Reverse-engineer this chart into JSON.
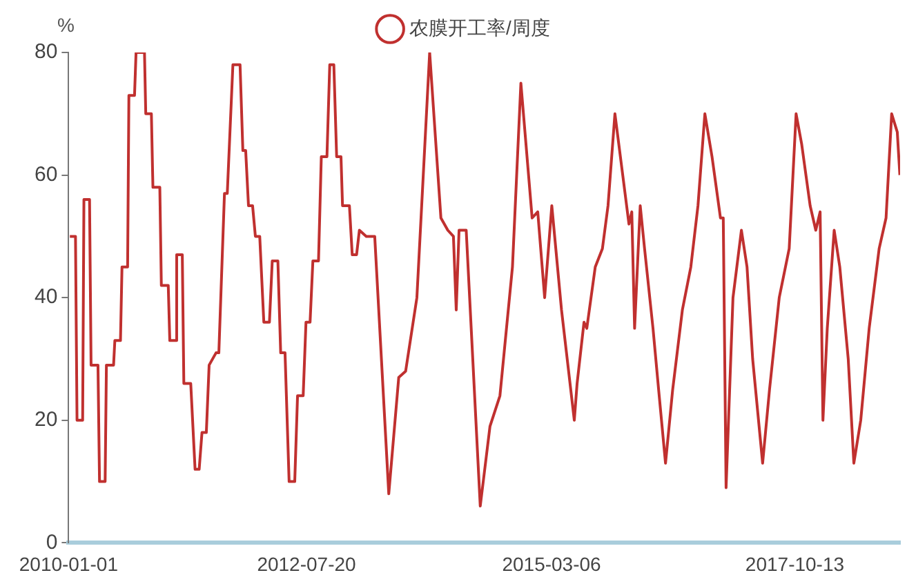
{
  "chart_data": {
    "type": "line",
    "ylabel": "%",
    "legend": "top",
    "marker": "none",
    "grid": false,
    "xlim": [
      "2010-01-01",
      "2018-11-29"
    ],
    "xticks": [
      "2010-01-01",
      "2012-07-20",
      "2015-03-06",
      "2017-10-13"
    ],
    "ylim": [
      0,
      80
    ],
    "yticks": [
      0,
      20,
      40,
      60,
      80
    ],
    "x": [
      "2010-01-06",
      "2010-01-28",
      "2010-02-03",
      "2010-02-25",
      "2010-03-02",
      "2010-03-24",
      "2010-03-30",
      "2010-04-26",
      "2010-05-02",
      "2010-05-24",
      "2010-05-29",
      "2010-06-26",
      "2010-07-01",
      "2010-07-23",
      "2010-07-29",
      "2010-08-20",
      "2010-08-25",
      "2010-09-16",
      "2010-09-22",
      "2010-10-25",
      "2010-10-30",
      "2010-11-21",
      "2010-11-27",
      "2010-12-24",
      "2010-12-30",
      "2011-01-26",
      "2011-02-01",
      "2011-02-23",
      "2011-02-28",
      "2011-03-22",
      "2011-03-28",
      "2011-04-24",
      "2011-05-11",
      "2011-05-27",
      "2011-06-07",
      "2011-06-24",
      "2011-07-05",
      "2011-08-01",
      "2011-08-12",
      "2011-09-03",
      "2011-09-14",
      "2011-10-06",
      "2011-11-03",
      "2011-11-14",
      "2011-11-25",
      "2011-12-06",
      "2011-12-22",
      "2012-01-02",
      "2012-01-19",
      "2012-02-04",
      "2012-02-26",
      "2012-03-08",
      "2012-03-30",
      "2012-04-10",
      "2012-04-27",
      "2012-05-13",
      "2012-06-04",
      "2012-06-15",
      "2012-07-07",
      "2012-07-18",
      "2012-08-03",
      "2012-08-14",
      "2012-09-05",
      "2012-09-16",
      "2012-10-08",
      "2012-10-19",
      "2012-11-04",
      "2012-11-15",
      "2012-12-02",
      "2012-12-08",
      "2013-01-04",
      "2013-01-15",
      "2013-02-01",
      "2013-02-12",
      "2013-03-11",
      "2013-04-13",
      "2013-06-07",
      "2013-07-16",
      "2013-08-12",
      "2013-09-25",
      "2013-11-14",
      "2013-12-28",
      "2014-01-24",
      "2014-02-15",
      "2014-02-26",
      "2014-03-09",
      "2014-04-06",
      "2014-05-31",
      "2014-07-08",
      "2014-08-16",
      "2014-10-04",
      "2014-11-06",
      "2014-12-20",
      "2015-01-11",
      "2015-02-07",
      "2015-03-07",
      "2015-04-14",
      "2015-06-03",
      "2015-06-14",
      "2015-07-11",
      "2015-07-22",
      "2015-08-24",
      "2015-09-21",
      "2015-10-13",
      "2015-11-09",
      "2016-01-03",
      "2016-01-14",
      "2016-01-25",
      "2016-02-16",
      "2016-03-04",
      "2016-04-06",
      "2016-04-28",
      "2016-05-25",
      "2016-06-22",
      "2016-07-30",
      "2016-09-01",
      "2016-09-29",
      "2016-10-26",
      "2016-11-23",
      "2016-12-26",
      "2017-01-06",
      "2017-01-17",
      "2017-02-13",
      "2017-03-18",
      "2017-04-09",
      "2017-05-01",
      "2017-06-09",
      "2017-07-06",
      "2017-08-13",
      "2017-09-21",
      "2017-10-18",
      "2017-11-09",
      "2017-12-12",
      "2018-01-03",
      "2018-01-20",
      "2018-01-31",
      "2018-02-17",
      "2018-03-16",
      "2018-04-07",
      "2018-05-10",
      "2018-06-01",
      "2018-06-28",
      "2018-07-31",
      "2018-09-08",
      "2018-10-05",
      "2018-10-27",
      "2018-11-18",
      "2018-11-28"
    ],
    "series": [
      {
        "name": "农膜开工率/周度",
        "color": "#c0302f",
        "values": [
          50,
          50,
          20,
          20,
          56,
          56,
          29,
          29,
          10,
          10,
          29,
          29,
          33,
          33,
          45,
          45,
          73,
          73,
          80,
          80,
          70,
          70,
          58,
          58,
          42,
          42,
          33,
          33,
          47,
          47,
          26,
          26,
          12,
          12,
          18,
          18,
          29,
          31,
          31,
          57,
          57,
          78,
          78,
          64,
          64,
          55,
          55,
          50,
          50,
          36,
          36,
          46,
          46,
          31,
          31,
          10,
          10,
          24,
          24,
          36,
          36,
          46,
          46,
          63,
          63,
          78,
          78,
          63,
          63,
          55,
          55,
          47,
          47,
          51,
          50,
          50,
          8,
          27,
          28,
          40,
          80,
          53,
          51,
          50,
          38,
          51,
          51,
          6,
          19,
          24,
          45,
          75,
          53,
          54,
          40,
          55,
          38,
          20,
          26,
          36,
          35,
          45,
          48,
          55,
          70,
          52,
          54,
          35,
          55,
          48,
          35,
          25,
          13,
          25,
          38,
          45,
          55,
          70,
          63,
          53,
          53,
          9,
          40,
          51,
          45,
          30,
          13,
          25,
          40,
          48,
          70,
          65,
          55,
          51,
          54,
          20,
          35,
          51,
          45,
          30,
          13,
          20,
          35,
          48,
          53,
          70,
          67,
          60
        ]
      }
    ]
  }
}
